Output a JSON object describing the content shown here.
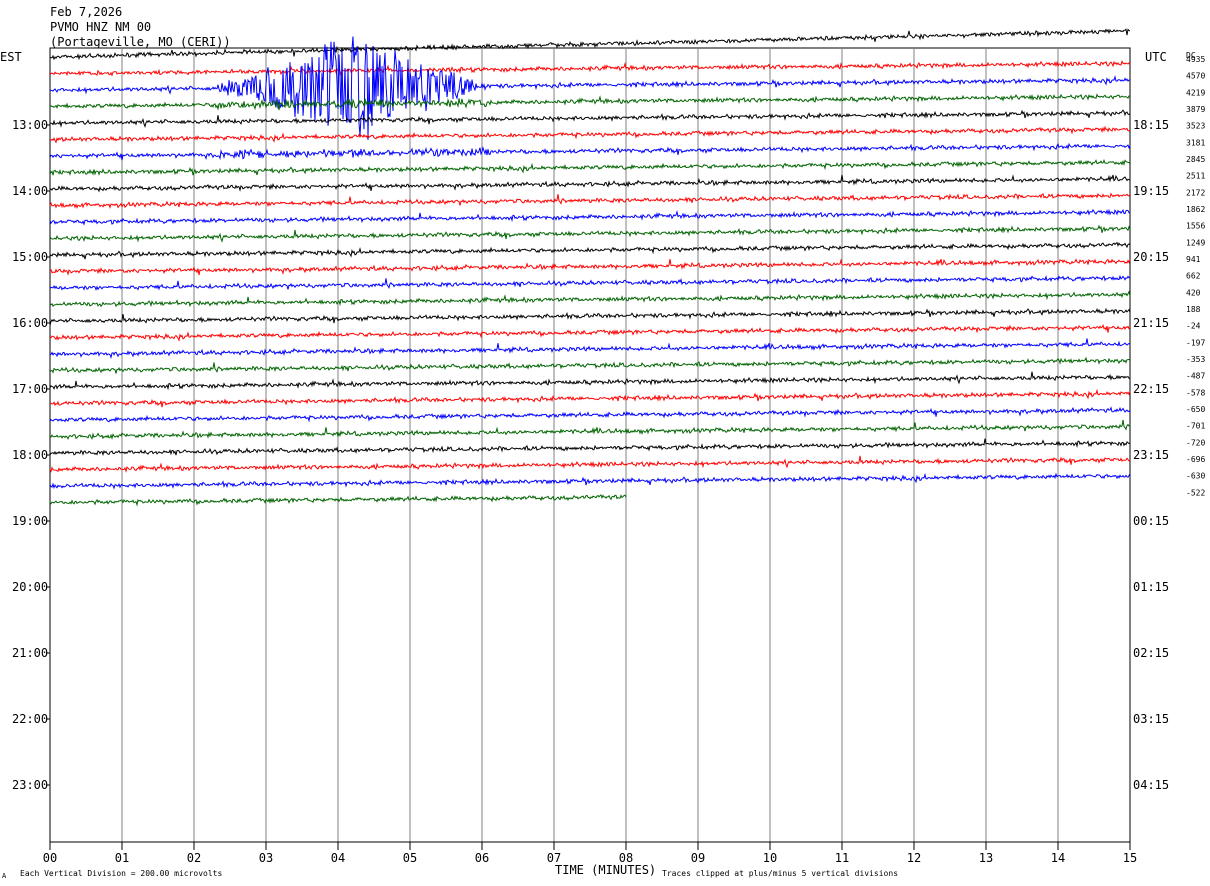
{
  "header": {
    "date": "Feb 7,2026",
    "station": "PVMO HNZ NM 00",
    "location": "(Portageville, MO (CERI))"
  },
  "left_axis_title": "EST",
  "right_axis_title": "UTC",
  "dc_title": "DC",
  "footer": {
    "scale_note": "Each Vertical Division =  200.00 microvolts",
    "x_title": "TIME (MINUTES)",
    "clip_note": "Traces clipped at plus/minus 5 vertical divisions",
    "corner_mark": "A"
  },
  "chart_data": {
    "type": "line",
    "title": "PVMO HNZ NM 00",
    "xlabel": "TIME (MINUTES)",
    "xlim": [
      0,
      15
    ],
    "x_ticks": [
      "00",
      "01",
      "02",
      "03",
      "04",
      "05",
      "06",
      "07",
      "08",
      "09",
      "10",
      "11",
      "12",
      "13",
      "14",
      "15"
    ],
    "left_time_labels": [
      "13:00",
      "14:00",
      "15:00",
      "16:00",
      "17:00",
      "18:00",
      "19:00",
      "20:00",
      "21:00",
      "22:00",
      "23:00"
    ],
    "right_time_labels": [
      "18:15",
      "19:15",
      "20:15",
      "21:15",
      "22:15",
      "23:15",
      "00:15",
      "01:15",
      "02:15",
      "03:15",
      "04:15"
    ],
    "dc_offsets": [
      4935,
      4570,
      4219,
      3879,
      3523,
      3181,
      2845,
      2511,
      2172,
      1862,
      1556,
      1249,
      941,
      662,
      420,
      188,
      -24,
      -197,
      -353,
      -487,
      -578,
      -650,
      -701,
      -720,
      -696,
      -630,
      -522
    ],
    "trace_colors": [
      "#000000",
      "#ff0000",
      "#0000ff",
      "#006400"
    ],
    "traces_shown": 28,
    "last_trace_end_minute": 8.0,
    "events": [
      {
        "trace_start": 2,
        "trace_end": 8,
        "minute_start": 2.3,
        "minute_end": 6.1,
        "note": "large clipped signal"
      }
    ],
    "grid": true
  }
}
